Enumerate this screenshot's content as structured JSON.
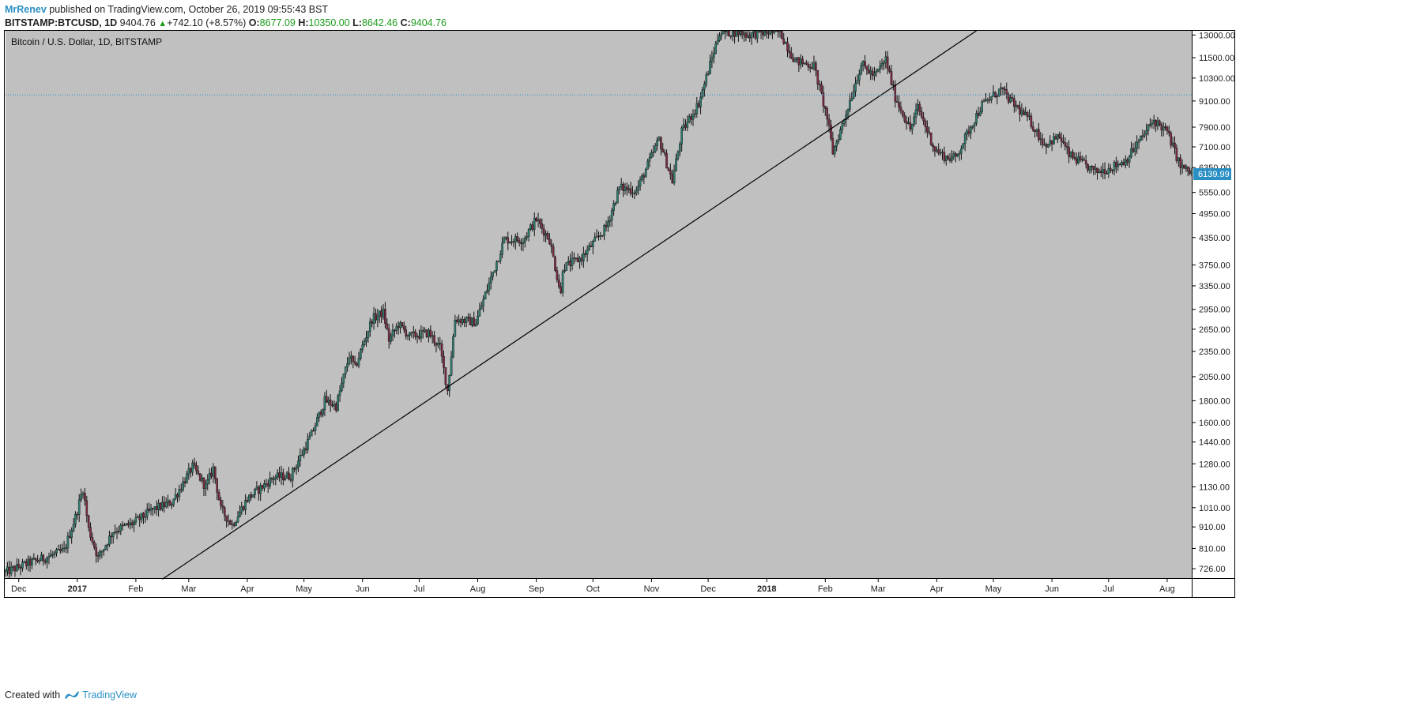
{
  "header": {
    "author": "MrRenev",
    "published_text": "published on TradingView.com, October 26, 2019 09:55:43 BST",
    "symbol": "BITSTAMP:BTCUSD, 1D",
    "last": "9404.76",
    "change": "+742.10 (+8.57%)",
    "open_label": "O:",
    "open": "8677.09",
    "high_label": "H:",
    "high": "10350.00",
    "low_label": "L:",
    "low": "8642.46",
    "close_label": "C:",
    "close": "9404.76"
  },
  "footer": {
    "created_with": "Created with",
    "brand": "TradingView"
  },
  "colors": {
    "background": "#c0c0c0",
    "up": "#2e7d70",
    "down": "#7a2a3e",
    "wick": "#111111",
    "price_line": "#2a8fc4",
    "badge": "#2a8fc4",
    "trend": "#000000"
  },
  "chart_data": {
    "type": "candlestick",
    "title": "Bitcoin / U.S. Dollar, 1D, BITSTAMP",
    "y_scale": "log",
    "ylim": [
      690,
      13300
    ],
    "x_range": [
      "2016-11-24",
      "2018-08-14"
    ],
    "y_ticks": [
      "726.00",
      "810.00",
      "910.00",
      "1010.00",
      "1130.00",
      "1280.00",
      "1440.00",
      "1600.00",
      "1800.00",
      "2050.00",
      "2350.00",
      "2650.00",
      "2950.00",
      "3350.00",
      "3750.00",
      "4350.00",
      "4950.00",
      "5550.00",
      "6350.00",
      "7100.00",
      "7900.00",
      "9100.00",
      "10300.00",
      "11500.00",
      "13000.00"
    ],
    "x_ticks": [
      {
        "date": "2016-12-01",
        "label": "Dec",
        "bold": false
      },
      {
        "date": "2017-01-01",
        "label": "2017",
        "bold": true
      },
      {
        "date": "2017-02-01",
        "label": "Feb",
        "bold": false
      },
      {
        "date": "2017-03-01",
        "label": "Mar",
        "bold": false
      },
      {
        "date": "2017-04-01",
        "label": "Apr",
        "bold": false
      },
      {
        "date": "2017-05-01",
        "label": "May",
        "bold": false
      },
      {
        "date": "2017-06-01",
        "label": "Jun",
        "bold": false
      },
      {
        "date": "2017-07-01",
        "label": "Jul",
        "bold": false
      },
      {
        "date": "2017-08-01",
        "label": "Aug",
        "bold": false
      },
      {
        "date": "2017-09-01",
        "label": "Sep",
        "bold": false
      },
      {
        "date": "2017-10-01",
        "label": "Oct",
        "bold": false
      },
      {
        "date": "2017-11-01",
        "label": "Nov",
        "bold": false
      },
      {
        "date": "2017-12-01",
        "label": "Dec",
        "bold": false
      },
      {
        "date": "2018-01-01",
        "label": "2018",
        "bold": true
      },
      {
        "date": "2018-02-01",
        "label": "Feb",
        "bold": false
      },
      {
        "date": "2018-03-01",
        "label": "Mar",
        "bold": false
      },
      {
        "date": "2018-04-01",
        "label": "Apr",
        "bold": false
      },
      {
        "date": "2018-05-01",
        "label": "May",
        "bold": false
      },
      {
        "date": "2018-06-01",
        "label": "Jun",
        "bold": false
      },
      {
        "date": "2018-07-01",
        "label": "Jul",
        "bold": false
      },
      {
        "date": "2018-08-01",
        "label": "Aug",
        "bold": false
      }
    ],
    "price_line": 9404.76,
    "last_price_badge": "6139.99",
    "trendline": [
      {
        "date": "2017-02-15",
        "price": 686
      },
      {
        "date": "2018-04-22",
        "price": 13300
      }
    ],
    "series": [
      {
        "close_path": [
          [
            "2016-11-24",
            712
          ],
          [
            "2016-12-05",
            745
          ],
          [
            "2016-12-15",
            770
          ],
          [
            "2016-12-25",
            800
          ],
          [
            "2016-12-31",
            960
          ],
          [
            "2017-01-04",
            1120
          ],
          [
            "2017-01-07",
            900
          ],
          [
            "2017-01-12",
            770
          ],
          [
            "2017-01-20",
            890
          ],
          [
            "2017-01-31",
            930
          ],
          [
            "2017-02-10",
            1000
          ],
          [
            "2017-02-20",
            1040
          ],
          [
            "2017-03-03",
            1260
          ],
          [
            "2017-03-10",
            1130
          ],
          [
            "2017-03-14",
            1250
          ],
          [
            "2017-03-18",
            1000
          ],
          [
            "2017-03-24",
            920
          ],
          [
            "2017-04-01",
            1060
          ],
          [
            "2017-04-15",
            1190
          ],
          [
            "2017-04-24",
            1200
          ],
          [
            "2017-05-05",
            1500
          ],
          [
            "2017-05-12",
            1800
          ],
          [
            "2017-05-18",
            1750
          ],
          [
            "2017-05-25",
            2300
          ],
          [
            "2017-05-28",
            2150
          ],
          [
            "2017-06-06",
            2800
          ],
          [
            "2017-06-12",
            2900
          ],
          [
            "2017-06-15",
            2500
          ],
          [
            "2017-06-20",
            2720
          ],
          [
            "2017-06-26",
            2550
          ],
          [
            "2017-07-06",
            2600
          ],
          [
            "2017-07-12",
            2400
          ],
          [
            "2017-07-16",
            1900
          ],
          [
            "2017-07-20",
            2800
          ],
          [
            "2017-07-31",
            2750
          ],
          [
            "2017-08-05",
            3200
          ],
          [
            "2017-08-15",
            4300
          ],
          [
            "2017-08-25",
            4300
          ],
          [
            "2017-09-01",
            4800
          ],
          [
            "2017-09-08",
            4300
          ],
          [
            "2017-09-14",
            3200
          ],
          [
            "2017-09-15",
            3700
          ],
          [
            "2017-09-25",
            3900
          ],
          [
            "2017-10-08",
            4600
          ],
          [
            "2017-10-15",
            5700
          ],
          [
            "2017-10-24",
            5600
          ],
          [
            "2017-11-05",
            7400
          ],
          [
            "2017-11-12",
            5900
          ],
          [
            "2017-11-17",
            7700
          ],
          [
            "2017-11-26",
            9000
          ],
          [
            "2017-12-07",
            13200
          ],
          [
            "2017-12-17",
            13200
          ],
          [
            "2017-12-22",
            13000
          ],
          [
            "2017-12-26",
            13100
          ],
          [
            "2018-01-02",
            13200
          ],
          [
            "2018-01-08",
            13200
          ],
          [
            "2018-01-16",
            11300
          ],
          [
            "2018-01-26",
            11000
          ],
          [
            "2018-02-02",
            8300
          ],
          [
            "2018-02-05",
            6900
          ],
          [
            "2018-02-10",
            8000
          ],
          [
            "2018-02-20",
            11100
          ],
          [
            "2018-02-27",
            10400
          ],
          [
            "2018-03-05",
            11400
          ],
          [
            "2018-03-10",
            9300
          ],
          [
            "2018-03-18",
            7800
          ],
          [
            "2018-03-22",
            8800
          ],
          [
            "2018-03-31",
            7000
          ],
          [
            "2018-04-06",
            6700
          ],
          [
            "2018-04-11",
            6700
          ],
          [
            "2018-04-20",
            8100
          ],
          [
            "2018-04-25",
            8900
          ],
          [
            "2018-05-05",
            9700
          ],
          [
            "2018-05-10",
            9100
          ],
          [
            "2018-05-20",
            8200
          ],
          [
            "2018-05-28",
            7200
          ],
          [
            "2018-06-05",
            7500
          ],
          [
            "2018-06-10",
            6800
          ],
          [
            "2018-06-24",
            6200
          ],
          [
            "2018-06-30",
            6300
          ],
          [
            "2018-07-10",
            6600
          ],
          [
            "2018-07-17",
            7300
          ],
          [
            "2018-07-25",
            8200
          ],
          [
            "2018-08-01",
            7700
          ],
          [
            "2018-08-08",
            6400
          ],
          [
            "2018-08-14",
            6140
          ]
        ]
      }
    ]
  }
}
